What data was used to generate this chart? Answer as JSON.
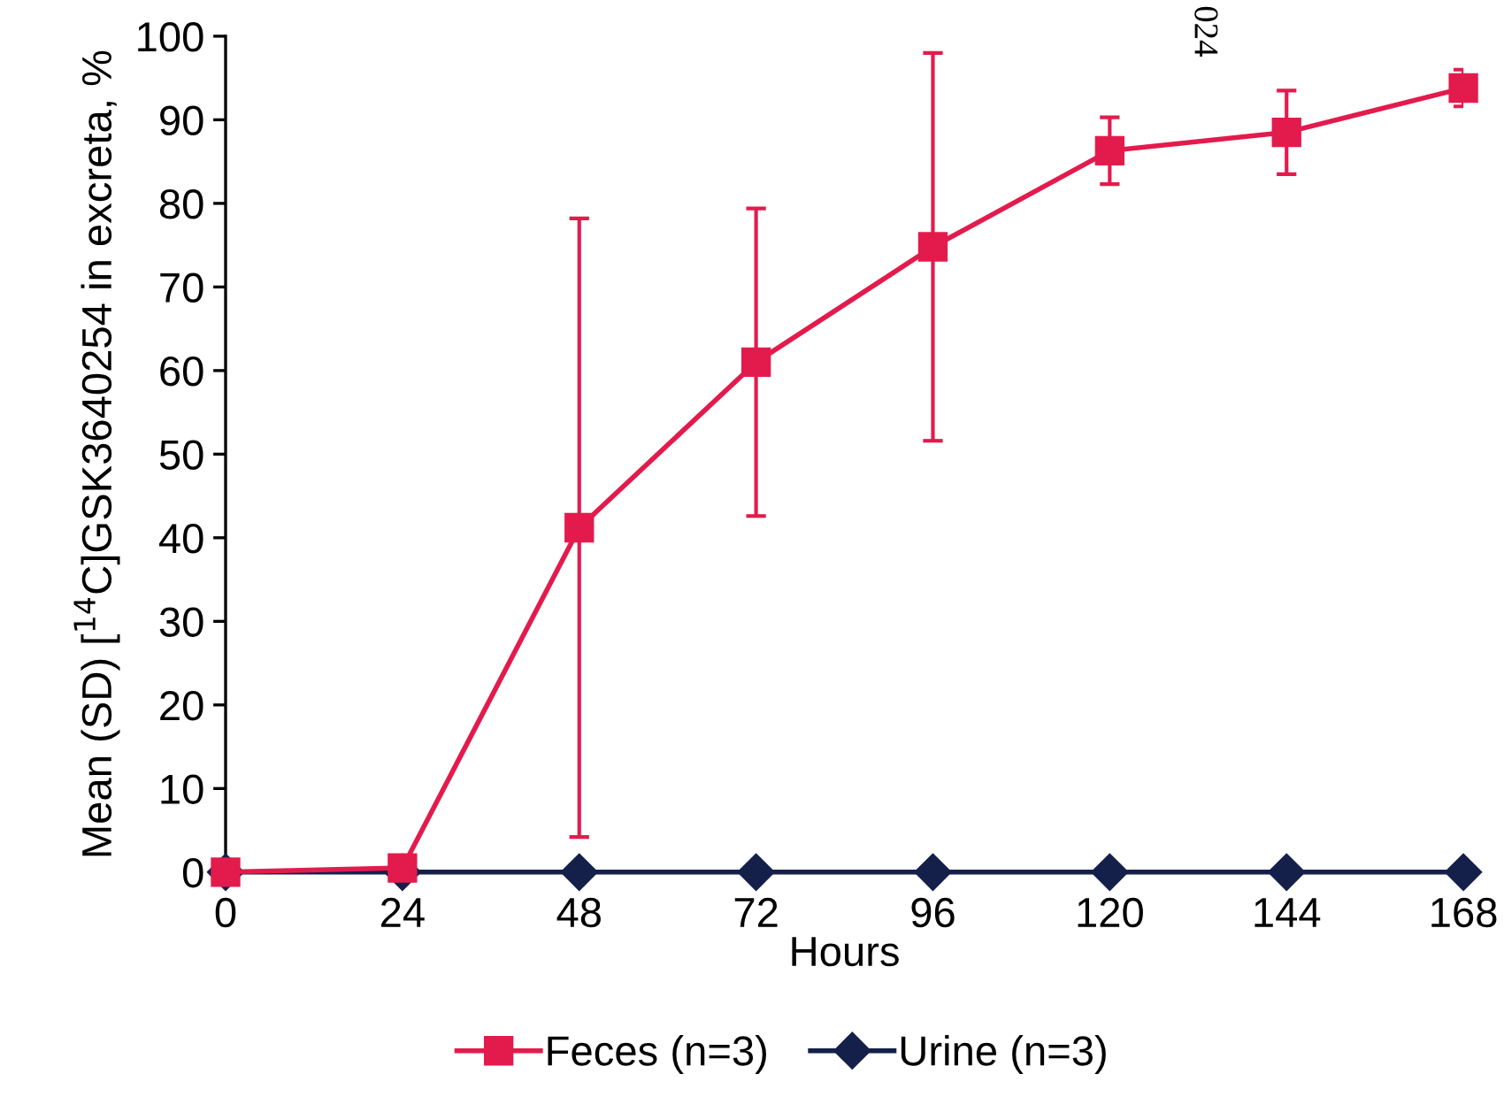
{
  "chart_data": {
    "type": "line",
    "xlabel": "Hours",
    "ylabel": "Mean (SD) [$^{14}$C]GSK3640254 in excreta, %",
    "x": [
      0,
      24,
      48,
      72,
      96,
      120,
      144,
      168
    ],
    "series": [
      {
        "name": "Feces (n=3)",
        "color": "#e31b4d",
        "marker": "square",
        "values": [
          0,
          0.5,
          41.2,
          61,
          74.8,
          86.3,
          88.5,
          93.8
        ],
        "errors": [
          null,
          null,
          37,
          18.4,
          23.2,
          4,
          5,
          2.2
        ]
      },
      {
        "name": "Urine (n=3)",
        "color": "#14204a",
        "marker": "diamond",
        "values": [
          0,
          0,
          0,
          0,
          0,
          0,
          0,
          0
        ]
      }
    ],
    "xlim": [
      0,
      168
    ],
    "xticks": [
      0,
      24,
      48,
      72,
      96,
      120,
      144,
      168
    ],
    "ylim": [
      0,
      100
    ],
    "yticks": [
      0,
      10,
      20,
      30,
      40,
      50,
      60,
      70,
      80,
      90,
      100
    ],
    "grid": false,
    "legend": "bottom",
    "line_style": "solid",
    "annotations": [
      "024"
    ]
  }
}
